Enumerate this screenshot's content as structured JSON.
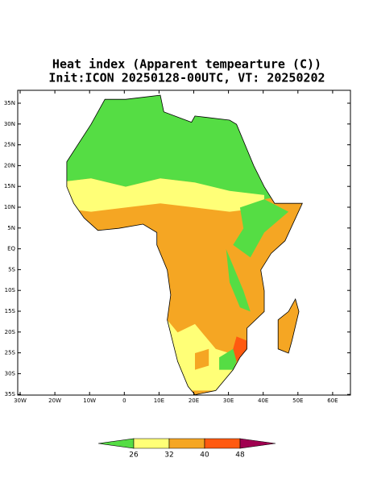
{
  "header": {
    "title": "Heat index (Apparent tempearture (C))",
    "subtitle": "Init:ICON 20250128-00UTC, VT: 20250202"
  },
  "map": {
    "lat_labels": [
      "35N",
      "30N",
      "25N",
      "20N",
      "15N",
      "10N",
      "5N",
      "EQ",
      "5S",
      "10S",
      "15S",
      "20S",
      "25S",
      "30S",
      "35S"
    ],
    "lon_labels": [
      "30W",
      "20W",
      "10W",
      "0",
      "10E",
      "20E",
      "30E",
      "40E",
      "50E",
      "60E"
    ]
  },
  "colorbar": {
    "ticks": [
      26,
      32,
      40,
      48
    ],
    "colors": [
      "#55dd44",
      "#ffff77",
      "#f5a623",
      "#ff5a10",
      "#a00050"
    ]
  }
}
